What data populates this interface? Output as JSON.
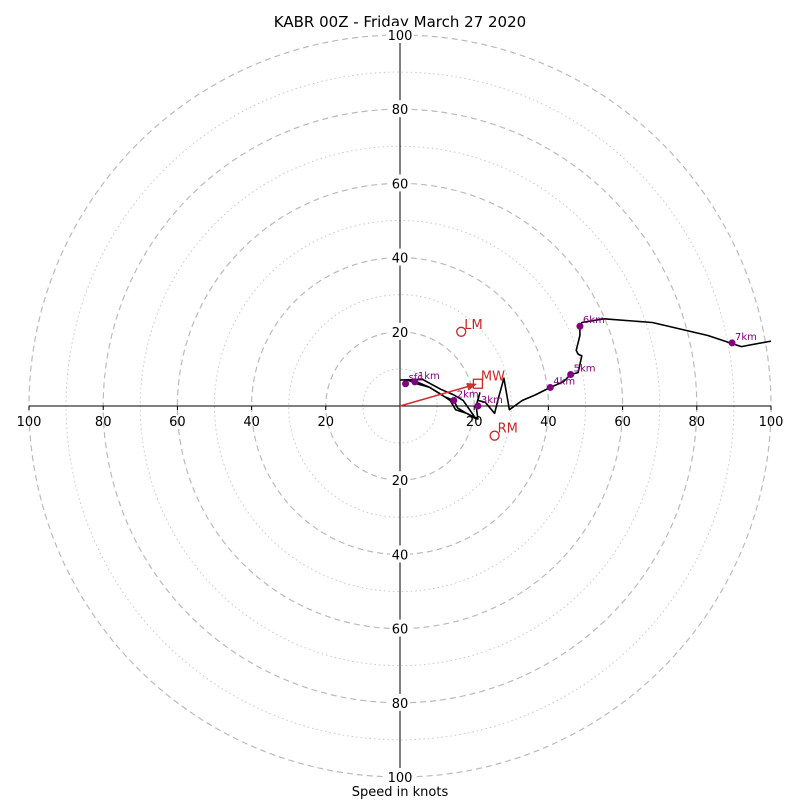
{
  "chart_data": {
    "type": "hodograph",
    "title": "KABR 00Z - Friday March 27 2020",
    "xlabel": "Speed in knots",
    "axis_range": [
      -100,
      100
    ],
    "ring_major": [
      20,
      40,
      60,
      80,
      100
    ],
    "ring_minor": [
      10,
      30,
      50,
      70,
      90
    ],
    "x_tick_values": [
      -100,
      -80,
      -60,
      -40,
      -20,
      20,
      40,
      60,
      80,
      100
    ],
    "x_tick_labels": [
      "100",
      "80",
      "60",
      "40",
      "20",
      "20",
      "40",
      "60",
      "80",
      "100"
    ],
    "y_tick_values": [
      100,
      80,
      60,
      40,
      20,
      -20,
      -40,
      -60,
      -80,
      -100
    ],
    "y_tick_labels": [
      "100",
      "80",
      "60",
      "40",
      "20",
      "20",
      "40",
      "60",
      "80",
      "100"
    ],
    "colors": {
      "trace": "#000000",
      "km_marker": "#800080",
      "motion": "#c62828",
      "grid": "#bbbbbb",
      "axis": "#000000"
    },
    "wind_trace": [
      [
        0,
        7
      ],
      [
        6,
        7.2
      ],
      [
        11,
        4.5
      ],
      [
        14.5,
        3
      ],
      [
        17,
        1.5
      ],
      [
        20.5,
        -3.5
      ],
      [
        15.5,
        -0.5
      ],
      [
        14.5,
        1.5
      ],
      [
        12,
        2.5
      ],
      [
        8,
        5
      ],
      [
        4.5,
        6
      ],
      [
        2,
        7
      ],
      [
        4.5,
        6.5
      ],
      [
        8,
        5
      ],
      [
        10.5,
        3.5
      ],
      [
        13.5,
        1.5
      ],
      [
        15,
        -1
      ],
      [
        18,
        -2
      ],
      [
        21,
        -3.5
      ],
      [
        20.5,
        0
      ],
      [
        21.5,
        3.5
      ],
      [
        21,
        1.5
      ],
      [
        23,
        1
      ],
      [
        25.5,
        -2
      ],
      [
        26.5,
        2
      ],
      [
        28,
        7.5
      ],
      [
        29.5,
        -1
      ],
      [
        33,
        1.5
      ],
      [
        36.5,
        3
      ],
      [
        40.5,
        5
      ],
      [
        44,
        6.5
      ],
      [
        46,
        8.5
      ],
      [
        48,
        9
      ],
      [
        49,
        13.5
      ],
      [
        48,
        14
      ],
      [
        47.5,
        15
      ],
      [
        48.5,
        19
      ],
      [
        48.5,
        21
      ],
      [
        49,
        22.5
      ],
      [
        55,
        23.5
      ],
      [
        68,
        22.5
      ],
      [
        83,
        19
      ],
      [
        92,
        16
      ],
      [
        100,
        17.5
      ]
    ],
    "km_markers": [
      {
        "label": "sfc",
        "u": 1.5,
        "v": 6
      },
      {
        "label": "1km",
        "u": 4,
        "v": 6.5
      },
      {
        "label": "2km",
        "u": 14.5,
        "v": 1.5
      },
      {
        "label": "3km",
        "u": 21,
        "v": 0
      },
      {
        "label": "4km",
        "u": 40.5,
        "v": 5
      },
      {
        "label": "5km",
        "u": 46,
        "v": 8.5
      },
      {
        "label": "6km",
        "u": 48.5,
        "v": 21.5
      },
      {
        "label": "7km",
        "u": 89.5,
        "v": 17
      }
    ],
    "storm_motion": [
      {
        "label": "LM",
        "u": 16.5,
        "v": 20,
        "marker": "circle"
      },
      {
        "label": "MW",
        "u": 21,
        "v": 6,
        "marker": "square"
      },
      {
        "label": "RM",
        "u": 25.5,
        "v": -8,
        "marker": "circle"
      }
    ],
    "shear_vector": {
      "from": [
        0,
        0
      ],
      "to": [
        21,
        6
      ]
    }
  }
}
